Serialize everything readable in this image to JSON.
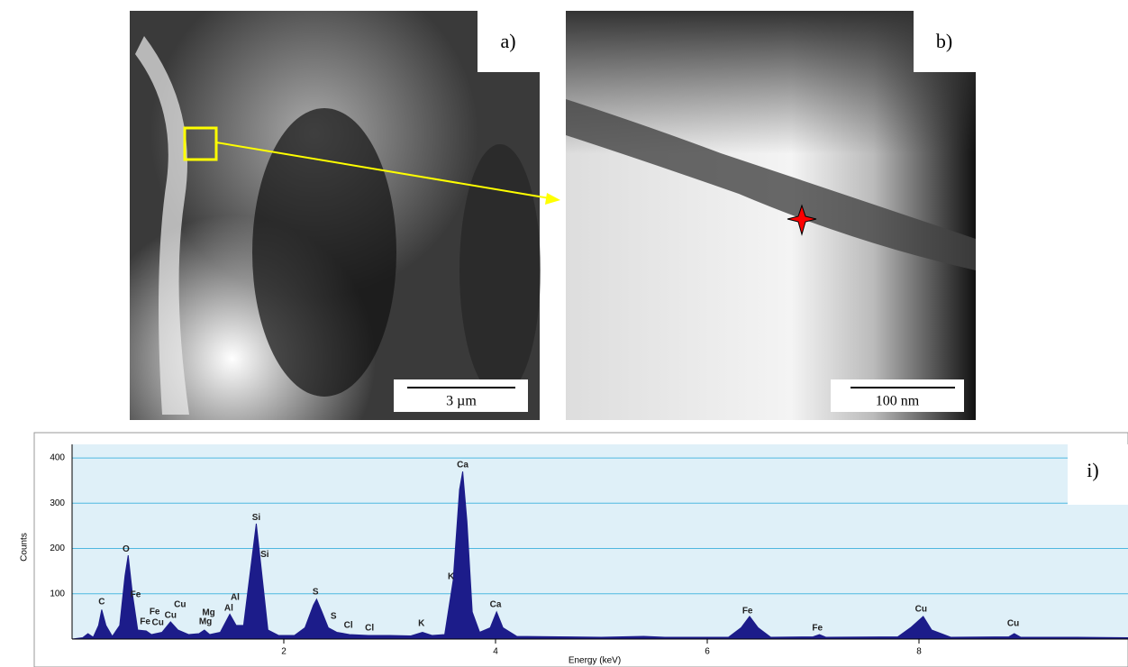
{
  "panels": [
    {
      "label": "a)",
      "scale_bar": "3 µm"
    },
    {
      "label": "b)",
      "scale_bar": "100 nm"
    }
  ],
  "chart_data": {
    "type": "area",
    "panel_label": "i)",
    "xlabel": "Energy (keV)",
    "ylabel": "Counts",
    "color": "#1c1c8a",
    "grid": true,
    "xlim": [
      0,
      10
    ],
    "ylim": [
      0,
      430
    ],
    "xticks": [
      2,
      4,
      6,
      8
    ],
    "yticks": [
      100,
      200,
      300,
      400
    ],
    "x": [
      0,
      0.1,
      0.15,
      0.2,
      0.25,
      0.28,
      0.32,
      0.38,
      0.45,
      0.5,
      0.53,
      0.57,
      0.62,
      0.7,
      0.75,
      0.85,
      0.93,
      1,
      1.1,
      1.2,
      1.25,
      1.3,
      1.4,
      1.49,
      1.55,
      1.62,
      1.7,
      1.74,
      1.78,
      1.85,
      1.95,
      2.1,
      2.2,
      2.28,
      2.31,
      2.36,
      2.42,
      2.5,
      2.62,
      2.8,
      3,
      3.2,
      3.31,
      3.4,
      3.52,
      3.6,
      3.66,
      3.69,
      3.73,
      3.78,
      3.85,
      3.95,
      4.01,
      4.07,
      4.2,
      4.6,
      5,
      5.4,
      5.6,
      6.2,
      6.32,
      6.4,
      6.48,
      6.6,
      7,
      7.06,
      7.12,
      7.8,
      7.92,
      8.04,
      8.12,
      8.3,
      8.85,
      8.9,
      8.96,
      9.5,
      10
    ],
    "values": [
      0,
      3,
      12,
      4,
      30,
      65,
      30,
      6,
      30,
      140,
      185,
      100,
      20,
      18,
      10,
      15,
      38,
      20,
      10,
      12,
      20,
      10,
      15,
      55,
      30,
      30,
      180,
      255,
      170,
      20,
      8,
      8,
      25,
      75,
      88,
      60,
      25,
      15,
      10,
      8,
      8,
      7,
      15,
      8,
      10,
      130,
      330,
      370,
      260,
      60,
      15,
      25,
      60,
      25,
      6,
      5,
      4,
      6,
      4,
      4,
      25,
      50,
      25,
      4,
      5,
      10,
      4,
      5,
      25,
      50,
      20,
      4,
      5,
      12,
      4,
      4,
      3
    ],
    "annotations": [
      {
        "text": "C",
        "x": 0.28,
        "y": 82
      },
      {
        "text": "O",
        "x": 0.51,
        "y": 198
      },
      {
        "text": "Fe",
        "x": 0.6,
        "y": 98
      },
      {
        "text": "Fe",
        "x": 0.78,
        "y": 60
      },
      {
        "text": "Fe",
        "x": 0.69,
        "y": 38
      },
      {
        "text": "Cu",
        "x": 0.81,
        "y": 36
      },
      {
        "text": "Cu",
        "x": 0.93,
        "y": 52
      },
      {
        "text": "Cu",
        "x": 1.02,
        "y": 76
      },
      {
        "text": "Mg",
        "x": 1.29,
        "y": 58
      },
      {
        "text": "Mg",
        "x": 1.26,
        "y": 38
      },
      {
        "text": "Al",
        "x": 1.54,
        "y": 92
      },
      {
        "text": "Al",
        "x": 1.48,
        "y": 68
      },
      {
        "text": "Si",
        "x": 1.74,
        "y": 268
      },
      {
        "text": "Si",
        "x": 1.82,
        "y": 186
      },
      {
        "text": "S",
        "x": 2.3,
        "y": 104
      },
      {
        "text": "S",
        "x": 2.47,
        "y": 50
      },
      {
        "text": "Cl",
        "x": 2.61,
        "y": 30
      },
      {
        "text": "Cl",
        "x": 2.81,
        "y": 24
      },
      {
        "text": "K",
        "x": 3.3,
        "y": 34
      },
      {
        "text": "K",
        "x": 3.58,
        "y": 138
      },
      {
        "text": "Ca",
        "x": 3.69,
        "y": 384
      },
      {
        "text": "Ca",
        "x": 4.0,
        "y": 76
      },
      {
        "text": "Fe",
        "x": 6.38,
        "y": 62
      },
      {
        "text": "Fe",
        "x": 7.04,
        "y": 24
      },
      {
        "text": "Cu",
        "x": 8.02,
        "y": 66
      },
      {
        "text": "Cu",
        "x": 8.89,
        "y": 34
      }
    ]
  }
}
